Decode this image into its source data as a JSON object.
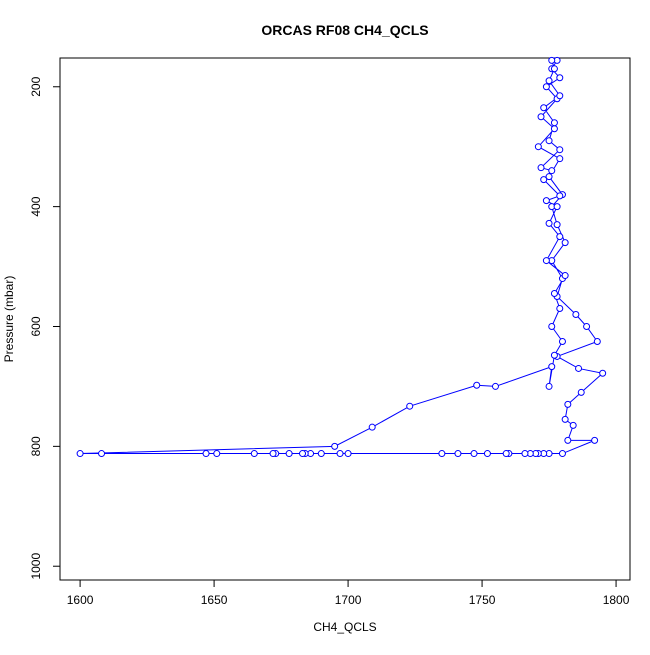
{
  "chart_data": {
    "type": "line",
    "title": "ORCAS RF08 CH4_QCLS",
    "xlabel": "CH4_QCLS",
    "ylabel": "Pressure (mbar)",
    "x": [
      1778,
      1776,
      1779,
      1774,
      1778,
      1772,
      1777,
      1771,
      1779,
      1775,
      1780,
      1776,
      1778,
      1781,
      1776,
      1780,
      1778,
      1785,
      1789,
      1793,
      1778,
      1786,
      1795,
      1787,
      1782,
      1781,
      1784,
      1782,
      1792,
      1780,
      1775,
      1773,
      1771,
      1770,
      1768,
      1766,
      1760,
      1759,
      1752,
      1747,
      1741,
      1735,
      1700,
      1697,
      1690,
      1686,
      1684,
      1683,
      1678,
      1673,
      1672,
      1665,
      1651,
      1647,
      1608,
      1600,
      1695,
      1709,
      1723,
      1748,
      1755,
      1776,
      1775,
      1777,
      1780,
      1776,
      1779,
      1777,
      1781,
      1774,
      1779,
      1775,
      1778,
      1774,
      1779,
      1773,
      1776,
      1772,
      1779,
      1775,
      1777,
      1773,
      1779,
      1775,
      1777,
      1776
    ],
    "series": [
      {
        "name": "CH4_QCLS",
        "color": "#0000ff",
        "values": [
          156,
          170,
          185,
          200,
          220,
          250,
          270,
          300,
          320,
          350,
          380,
          400,
          430,
          460,
          490,
          520,
          550,
          580,
          600,
          625,
          650,
          670,
          678,
          710,
          730,
          755,
          765,
          790,
          790,
          812,
          812,
          812,
          812,
          812,
          812,
          812,
          812,
          812,
          812,
          812,
          812,
          812,
          812,
          812,
          812,
          812,
          812,
          812,
          812,
          812,
          812,
          812,
          812,
          812,
          812,
          812,
          800,
          768,
          733,
          698,
          700,
          667,
          700,
          648,
          625,
          600,
          570,
          545,
          515,
          490,
          450,
          428,
          400,
          390,
          382,
          355,
          340,
          335,
          305,
          290,
          260,
          235,
          215,
          190,
          170,
          156
        ]
      }
    ],
    "xlim": [
      1592.5,
      1805.2
    ],
    "ylim": [
      1023,
      152
    ],
    "xticks": [
      1600,
      1650,
      1700,
      1750,
      1800
    ],
    "yticks": [
      200,
      400,
      600,
      800,
      1000
    ]
  }
}
